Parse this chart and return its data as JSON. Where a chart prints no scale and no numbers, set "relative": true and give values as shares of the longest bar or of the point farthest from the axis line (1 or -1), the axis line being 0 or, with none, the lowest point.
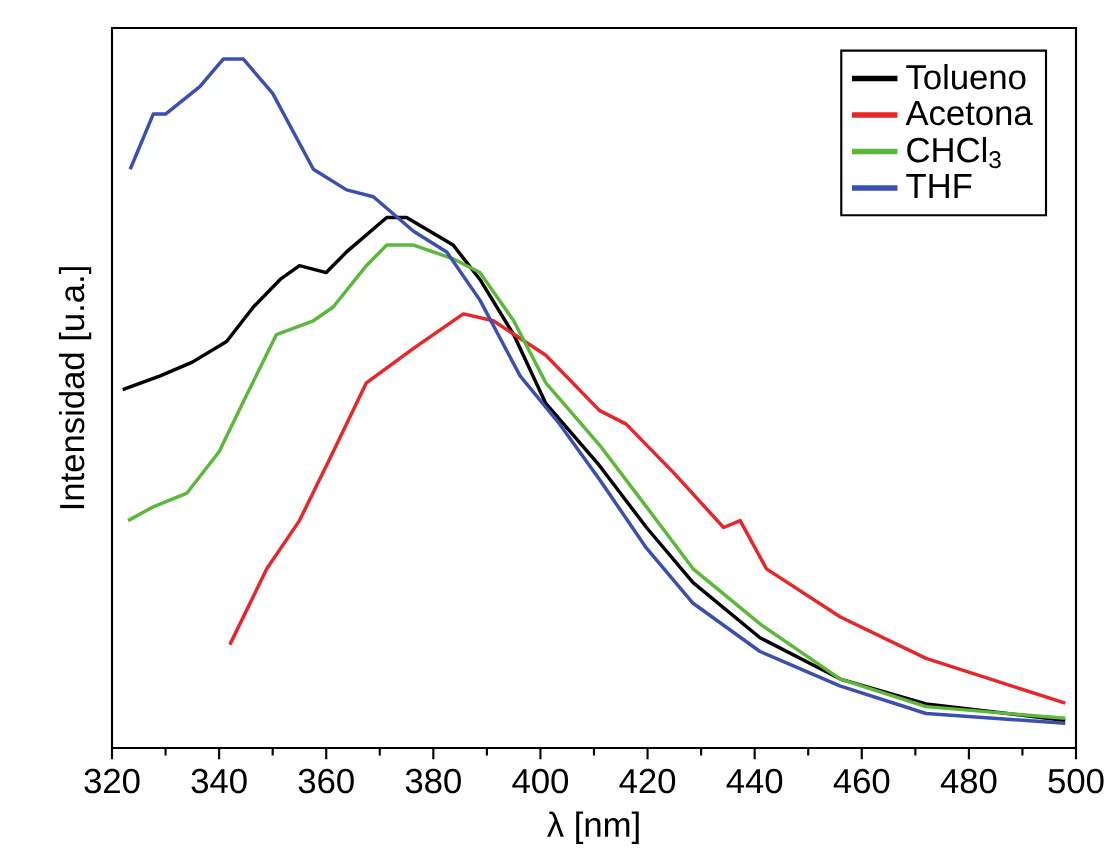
{
  "chart_data": {
    "type": "line",
    "xlabel": "λ [nm]",
    "ylabel": "Intensidad [u.a.]",
    "relative": true,
    "xlim": [
      320,
      500
    ],
    "xticks": [
      320,
      340,
      360,
      380,
      400,
      420,
      440,
      460,
      480,
      500
    ],
    "legend": "top right",
    "marker": "none",
    "line_style": "solid",
    "series": [
      {
        "name": "Tolueno",
        "color": "#000000",
        "x": [
          322,
          329,
          335,
          341.4,
          346.4,
          351.4,
          355,
          360,
          363.8,
          371.3,
          375,
          383.7,
          388.7,
          395,
          401,
          411,
          419.8,
          428.5,
          441,
          456,
          472,
          498
        ],
        "values": [
          0.52,
          0.54,
          0.56,
          0.59,
          0.64,
          0.68,
          0.7,
          0.69,
          0.72,
          0.77,
          0.77,
          0.73,
          0.68,
          0.6,
          0.5,
          0.41,
          0.32,
          0.24,
          0.16,
          0.1,
          0.064,
          0.04
        ]
      },
      {
        "name": "Acetona",
        "color": "#e8262a",
        "x": [
          342,
          348.9,
          355,
          361.3,
          367.5,
          376.3,
          385.6,
          391.2,
          401,
          411,
          416,
          424.8,
          434.2,
          437.3,
          442.2,
          456,
          472,
          498
        ],
        "values": [
          0.15,
          0.26,
          0.33,
          0.43,
          0.53,
          0.58,
          0.63,
          0.62,
          0.57,
          0.49,
          0.47,
          0.4,
          0.32,
          0.33,
          0.26,
          0.19,
          0.13,
          0.065
        ]
      },
      {
        "name": "CHCl$_{3}$",
        "color": "#5cb83a",
        "x": [
          323,
          327.7,
          334,
          340,
          345,
          350.7,
          357.6,
          361.3,
          367.5,
          371.3,
          376.3,
          383.7,
          388.7,
          395,
          401,
          411,
          419.8,
          428.5,
          441,
          456,
          472,
          498
        ],
        "values": [
          0.33,
          0.35,
          0.37,
          0.43,
          0.51,
          0.6,
          0.62,
          0.64,
          0.7,
          0.73,
          0.73,
          0.71,
          0.69,
          0.62,
          0.53,
          0.44,
          0.35,
          0.26,
          0.18,
          0.1,
          0.06,
          0.043
        ]
      },
      {
        "name": "THF",
        "color": "#3a4fb0",
        "x": [
          323.4,
          327.7,
          330,
          336.4,
          340.8,
          344.5,
          350,
          357.6,
          363.8,
          368.8,
          376.3,
          382.5,
          388.7,
          396.2,
          403.6,
          411,
          419.8,
          428.5,
          441,
          455.9,
          472,
          498
        ],
        "values": [
          0.84,
          0.92,
          0.92,
          0.96,
          1.0,
          1.0,
          0.95,
          0.84,
          0.81,
          0.8,
          0.75,
          0.72,
          0.65,
          0.54,
          0.47,
          0.39,
          0.29,
          0.21,
          0.14,
          0.09,
          0.05,
          0.036
        ]
      }
    ]
  }
}
